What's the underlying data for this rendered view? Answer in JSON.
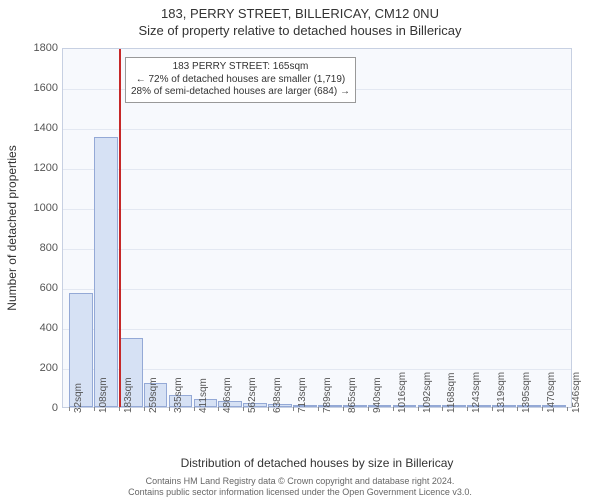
{
  "header": {
    "title": "183, PERRY STREET, BILLERICAY, CM12 0NU",
    "subtitle": "Size of property relative to detached houses in Billericay"
  },
  "chart": {
    "type": "histogram",
    "background_color": "#f7f9fd",
    "grid_color": "#e3e8f2",
    "border_color": "#c7d0e2",
    "bar_fill": "#d6e1f4",
    "bar_border": "#94a9d6",
    "highlight_color": "#c62828",
    "ylabel": "Number of detached properties",
    "xlabel": "Distribution of detached houses by size in Billericay",
    "ylim": [
      0,
      1800
    ],
    "ytick_step": 200,
    "xticks": [
      "32sqm",
      "108sqm",
      "183sqm",
      "259sqm",
      "335sqm",
      "411sqm",
      "486sqm",
      "562sqm",
      "638sqm",
      "713sqm",
      "789sqm",
      "865sqm",
      "940sqm",
      "1016sqm",
      "1092sqm",
      "1168sqm",
      "1243sqm",
      "1319sqm",
      "1395sqm",
      "1470sqm",
      "1546sqm"
    ],
    "bars": [
      570,
      1350,
      345,
      120,
      60,
      40,
      30,
      20,
      15,
      10,
      8,
      5,
      4,
      3,
      2,
      2,
      2,
      1,
      1,
      1
    ],
    "highlight_index": 2,
    "annotation": {
      "line1": "183 PERRY STREET: 165sqm",
      "line2": "← 72% of detached houses are smaller (1,719)",
      "line3": "28% of semi-detached houses are larger (684) →"
    }
  },
  "footer": {
    "line1": "Contains HM Land Registry data © Crown copyright and database right 2024.",
    "line2": "Contains public sector information licensed under the Open Government Licence v3.0."
  }
}
